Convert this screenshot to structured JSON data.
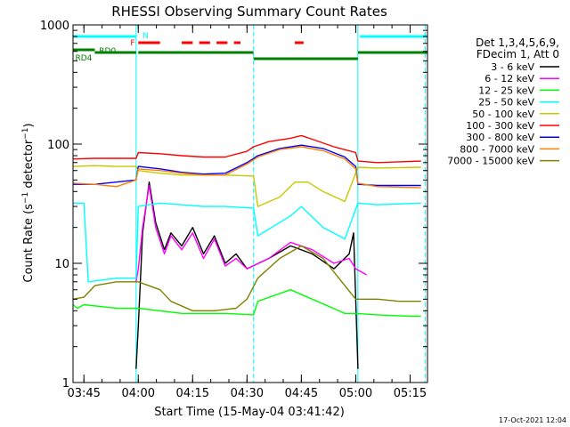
{
  "chart_data": {
    "type": "line",
    "title": "RHESSI Observing Summary Count Rates",
    "xlabel": "Start Time (15-May-04 03:41:42)",
    "ylabel": "Count Rate (s⁻¹ detector⁻¹)",
    "ylabel_main": "Count Rate (s",
    "ylabel_sup1": "−1",
    "ylabel_mid": " detector",
    "ylabel_sup2": "−1",
    "ylabel_end": ")",
    "yscale": "log",
    "ylim": [
      1,
      1000
    ],
    "xlim": [
      3.7,
      5.33
    ],
    "x_unit": "hours (UT)",
    "x_ticks": [
      {
        "label": "03:45",
        "value": 3.75
      },
      {
        "label": "04:00",
        "value": 4.0
      },
      {
        "label": "04:15",
        "value": 4.25
      },
      {
        "label": "04:30",
        "value": 4.5
      },
      {
        "label": "04:45",
        "value": 4.75
      },
      {
        "label": "05:00",
        "value": 5.0
      },
      {
        "label": "05:15",
        "value": 5.25
      }
    ],
    "y_ticks": [
      {
        "label": "1",
        "value": 1
      },
      {
        "label": "10",
        "value": 10
      },
      {
        "label": "100",
        "value": 100
      },
      {
        "label": "1000",
        "value": 1000
      }
    ],
    "legend_header": [
      "Det 1,3,4,5,6,9,",
      "FDecim 1, Att 0"
    ],
    "legend_position": "right",
    "series": [
      {
        "name": "3 - 6 keV",
        "color": "#000000",
        "points": [
          [
            3.99,
            1.3
          ],
          [
            4.0,
            3
          ],
          [
            4.02,
            18
          ],
          [
            4.05,
            48
          ],
          [
            4.08,
            22
          ],
          [
            4.12,
            13
          ],
          [
            4.15,
            18
          ],
          [
            4.2,
            14
          ],
          [
            4.25,
            20
          ],
          [
            4.3,
            12
          ],
          [
            4.35,
            17
          ],
          [
            4.4,
            10
          ],
          [
            4.45,
            12
          ],
          [
            4.5,
            9
          ],
          [
            4.6,
            11
          ],
          [
            4.7,
            14
          ],
          [
            4.8,
            12
          ],
          [
            4.9,
            9
          ],
          [
            4.97,
            12
          ],
          [
            4.99,
            18
          ],
          [
            5.01,
            1.3
          ]
        ]
      },
      {
        "name": "6 - 12 keV",
        "color": "#ff00ff",
        "points": [
          [
            3.99,
            7
          ],
          [
            4.0,
            9
          ],
          [
            4.02,
            20
          ],
          [
            4.05,
            45
          ],
          [
            4.08,
            20
          ],
          [
            4.12,
            12
          ],
          [
            4.15,
            17
          ],
          [
            4.2,
            13
          ],
          [
            4.25,
            18
          ],
          [
            4.3,
            11
          ],
          [
            4.35,
            16
          ],
          [
            4.4,
            9.5
          ],
          [
            4.45,
            11
          ],
          [
            4.5,
            9
          ],
          [
            4.6,
            11
          ],
          [
            4.7,
            15
          ],
          [
            4.8,
            13
          ],
          [
            4.9,
            10
          ],
          [
            4.97,
            11
          ],
          [
            5.0,
            9
          ],
          [
            5.05,
            8
          ]
        ]
      },
      {
        "name": "12 - 25 keV",
        "color": "#00ff00",
        "points": [
          [
            3.7,
            4.5
          ],
          [
            3.72,
            4.2
          ],
          [
            3.75,
            4.5
          ],
          [
            3.9,
            4.2
          ],
          [
            4.0,
            4.2
          ],
          [
            4.2,
            3.8
          ],
          [
            4.4,
            3.8
          ],
          [
            4.53,
            3.7
          ],
          [
            4.55,
            4.8
          ],
          [
            4.7,
            6
          ],
          [
            4.8,
            5
          ],
          [
            4.95,
            3.8
          ],
          [
            5.0,
            3.8
          ],
          [
            5.1,
            3.7
          ],
          [
            5.25,
            3.6
          ],
          [
            5.3,
            3.6
          ]
        ]
      },
      {
        "name": "25 - 50 keV",
        "color": "#00ffff",
        "points": [
          [
            3.7,
            32
          ],
          [
            3.75,
            32
          ],
          [
            3.77,
            7
          ],
          [
            3.9,
            7.5
          ],
          [
            3.99,
            7.5
          ],
          [
            4.0,
            30
          ],
          [
            4.1,
            32
          ],
          [
            4.2,
            31
          ],
          [
            4.3,
            30
          ],
          [
            4.4,
            30
          ],
          [
            4.53,
            29
          ],
          [
            4.55,
            17
          ],
          [
            4.7,
            25
          ],
          [
            4.75,
            30
          ],
          [
            4.85,
            20
          ],
          [
            4.95,
            16
          ],
          [
            5.01,
            32
          ],
          [
            5.1,
            31
          ],
          [
            5.3,
            32
          ]
        ]
      },
      {
        "name": "50 - 100 keV",
        "color": "#c8c800",
        "points": [
          [
            3.7,
            65
          ],
          [
            3.8,
            66
          ],
          [
            3.9,
            65
          ],
          [
            3.99,
            65
          ],
          [
            4.0,
            60
          ],
          [
            4.1,
            57
          ],
          [
            4.2,
            55
          ],
          [
            4.3,
            55
          ],
          [
            4.4,
            55
          ],
          [
            4.53,
            54
          ],
          [
            4.55,
            30
          ],
          [
            4.65,
            36
          ],
          [
            4.72,
            48
          ],
          [
            4.78,
            48
          ],
          [
            4.85,
            40
          ],
          [
            4.95,
            33
          ],
          [
            5.01,
            64
          ],
          [
            5.1,
            63
          ],
          [
            5.3,
            64
          ]
        ]
      },
      {
        "name": "100 - 300 keV",
        "color": "#ff0000",
        "points": [
          [
            3.7,
            75
          ],
          [
            3.8,
            76
          ],
          [
            3.99,
            76
          ],
          [
            4.0,
            85
          ],
          [
            4.1,
            83
          ],
          [
            4.2,
            80
          ],
          [
            4.3,
            78
          ],
          [
            4.4,
            78
          ],
          [
            4.5,
            87
          ],
          [
            4.53,
            95
          ],
          [
            4.6,
            105
          ],
          [
            4.7,
            112
          ],
          [
            4.75,
            118
          ],
          [
            4.8,
            110
          ],
          [
            4.9,
            95
          ],
          [
            5.0,
            85
          ],
          [
            5.01,
            72
          ],
          [
            5.1,
            70
          ],
          [
            5.3,
            72
          ]
        ]
      },
      {
        "name": "300 - 800 keV",
        "color": "#0000ff",
        "points": [
          [
            3.7,
            46
          ],
          [
            3.8,
            46
          ],
          [
            3.99,
            50
          ],
          [
            4.0,
            65
          ],
          [
            4.1,
            62
          ],
          [
            4.2,
            58
          ],
          [
            4.3,
            56
          ],
          [
            4.4,
            57
          ],
          [
            4.5,
            70
          ],
          [
            4.55,
            80
          ],
          [
            4.65,
            92
          ],
          [
            4.75,
            98
          ],
          [
            4.85,
            92
          ],
          [
            4.95,
            78
          ],
          [
            5.0,
            65
          ],
          [
            5.01,
            46
          ],
          [
            5.1,
            45
          ],
          [
            5.3,
            45
          ]
        ]
      },
      {
        "name": "800 - 7000 keV",
        "color": "#ff8000",
        "points": [
          [
            3.7,
            47
          ],
          [
            3.8,
            46
          ],
          [
            3.9,
            44
          ],
          [
            3.99,
            50
          ],
          [
            4.0,
            62
          ],
          [
            4.1,
            60
          ],
          [
            4.2,
            57
          ],
          [
            4.3,
            55
          ],
          [
            4.4,
            55
          ],
          [
            4.5,
            68
          ],
          [
            4.55,
            78
          ],
          [
            4.65,
            90
          ],
          [
            4.75,
            95
          ],
          [
            4.85,
            88
          ],
          [
            4.95,
            75
          ],
          [
            5.0,
            62
          ],
          [
            5.01,
            47
          ],
          [
            5.1,
            44
          ],
          [
            5.3,
            43
          ]
        ]
      },
      {
        "name": "7000 - 15000 keV",
        "color": "#808000",
        "points": [
          [
            3.7,
            5
          ],
          [
            3.75,
            5.2
          ],
          [
            3.8,
            6.5
          ],
          [
            3.9,
            7
          ],
          [
            4.0,
            7
          ],
          [
            4.1,
            6
          ],
          [
            4.15,
            4.8
          ],
          [
            4.25,
            4
          ],
          [
            4.35,
            4
          ],
          [
            4.45,
            4.2
          ],
          [
            4.5,
            5
          ],
          [
            4.55,
            7.5
          ],
          [
            4.65,
            11
          ],
          [
            4.75,
            14
          ],
          [
            4.85,
            11
          ],
          [
            4.95,
            6.5
          ],
          [
            5.0,
            5
          ],
          [
            5.1,
            5
          ],
          [
            5.2,
            4.8
          ],
          [
            5.3,
            4.8
          ]
        ]
      }
    ],
    "annotations": {
      "N": {
        "label": "N",
        "color": "#00ffff"
      },
      "F": {
        "label": "F",
        "color": "#ff0000"
      },
      "RD0": {
        "label": "RD0",
        "color": "#008000"
      },
      "RD4": {
        "label": "RD4",
        "color": "#008000"
      },
      "night_intervals": [
        [
          3.7,
          3.99
        ],
        [
          5.02,
          5.33
        ]
      ],
      "flare_intervals": [
        [
          4.0,
          4.1
        ],
        [
          4.2,
          4.25
        ],
        [
          4.28,
          4.33
        ],
        [
          4.36,
          4.41
        ],
        [
          4.44,
          4.47
        ],
        [
          4.72,
          4.76
        ]
      ],
      "saa_intervals": [
        [
          3.7,
          3.8
        ],
        [
          3.8,
          3.99
        ],
        [
          4.0,
          4.53
        ],
        [
          4.53,
          5.01
        ],
        [
          5.01,
          5.33
        ]
      ],
      "markers": [
        3.99,
        4.53,
        5.01,
        5.32
      ]
    },
    "footer_date": "17-Oct-2021 12:04"
  }
}
